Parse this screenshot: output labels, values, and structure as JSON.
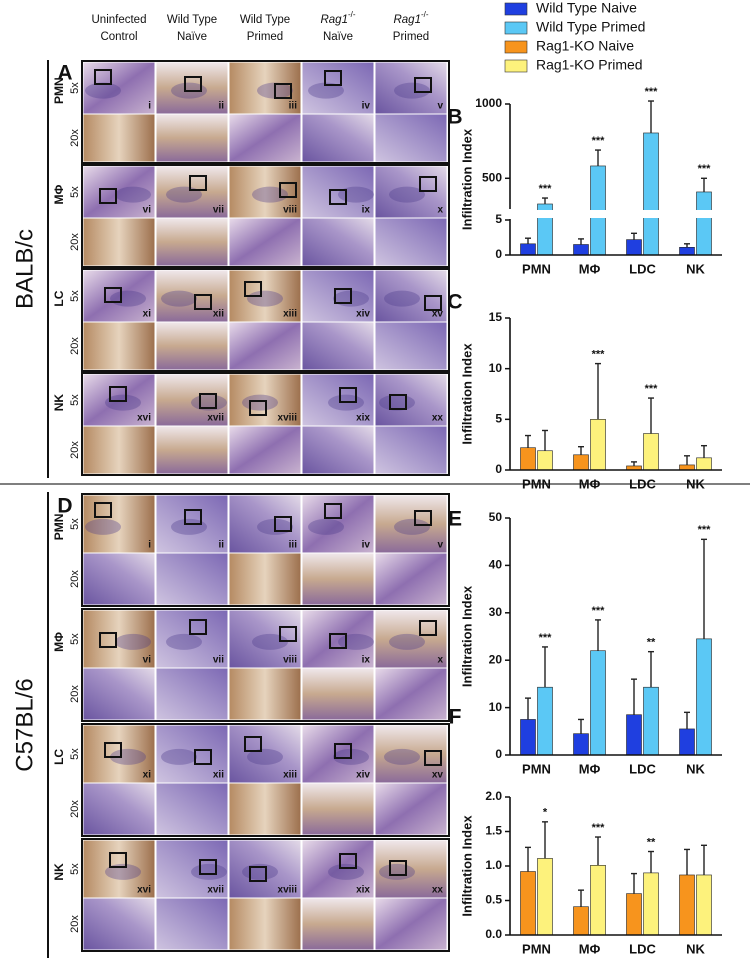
{
  "figure": {
    "columns": [
      {
        "line1": "Uninfected",
        "line2": "Control"
      },
      {
        "line1": "Wild Type",
        "line2": "Naïve"
      },
      {
        "line1": "Wild Type",
        "line2": "Primed"
      },
      {
        "line1": "Rag1",
        "sup": "-/-",
        "line2": "Naïve"
      },
      {
        "line1": "Rag1",
        "sup": "-/-",
        "line2": "Primed"
      }
    ],
    "magnifications": [
      "5x",
      "20x"
    ],
    "numerals": [
      "i",
      "ii",
      "iii",
      "iv",
      "v",
      "vi",
      "vii",
      "viii",
      "ix",
      "x",
      "xi",
      "xii",
      "xiii",
      "xiv",
      "xv",
      "xvi",
      "xvii",
      "xviii",
      "xix",
      "xx"
    ],
    "panels": [
      {
        "letter": "A",
        "strain": "BALB/c",
        "rows": [
          "PMN",
          "MΦ",
          "LC",
          "NK"
        ]
      },
      {
        "letter": "D",
        "strain": "C57BL/6",
        "rows": [
          "PMN",
          "MΦ",
          "LC",
          "NK"
        ]
      }
    ]
  },
  "chart_data": [
    {
      "type": "bar",
      "panel": "B",
      "y_label": "Infiltration Index",
      "categories": [
        "PMN",
        "MΦ",
        "LDC",
        "NK"
      ],
      "ylim": [
        0,
        1000
      ],
      "ybreak": [
        5,
        300
      ],
      "yticks": [
        0,
        5,
        500,
        1000
      ],
      "series": [
        {
          "name": "Wild Type Naive",
          "color": "#1f3fe0",
          "values": [
            1.6,
            1.5,
            2.2,
            1.1
          ],
          "errors": [
            0.8,
            0.8,
            0.9,
            0.5
          ]
        },
        {
          "name": "Wild Type Primed",
          "color": "#5bc8f5",
          "values": [
            327,
            583,
            805,
            408
          ],
          "errors": [
            40,
            107,
            215,
            92
          ],
          "significance": [
            "***",
            "***",
            "***",
            "***"
          ]
        }
      ]
    },
    {
      "type": "bar",
      "panel": "C",
      "y_label": "Infiltration Index",
      "categories": [
        "PMN",
        "MΦ",
        "LDC",
        "NK"
      ],
      "ylim": [
        0,
        15
      ],
      "yticks": [
        0,
        5,
        10,
        15
      ],
      "series": [
        {
          "name": "Rag1-KO Naive",
          "color": "#f7941d",
          "values": [
            2.2,
            1.5,
            0.4,
            0.5
          ],
          "errors": [
            1.2,
            0.8,
            0.4,
            0.9
          ]
        },
        {
          "name": "Rag1-KO Primed",
          "color": "#fdf27c",
          "values": [
            1.9,
            5.0,
            3.6,
            1.2
          ],
          "errors": [
            2.0,
            5.5,
            3.5,
            1.2
          ],
          "significance": [
            null,
            "***",
            "***",
            null
          ]
        }
      ]
    },
    {
      "type": "bar",
      "panel": "E",
      "y_label": "Infiltration Index",
      "categories": [
        "PMN",
        "MΦ",
        "LDC",
        "NK"
      ],
      "ylim": [
        0,
        50
      ],
      "yticks": [
        0,
        10,
        20,
        30,
        40,
        50
      ],
      "series": [
        {
          "color": "#1f3fe0",
          "values": [
            7.5,
            4.5,
            8.5,
            5.5
          ],
          "errors": [
            4.5,
            3.0,
            7.5,
            3.5
          ]
        },
        {
          "color": "#5bc8f5",
          "values": [
            14.3,
            22,
            14.3,
            24.5
          ],
          "errors": [
            8.5,
            6.5,
            7.5,
            21
          ],
          "significance": [
            "***",
            "***",
            "**",
            "***"
          ]
        }
      ]
    },
    {
      "type": "bar",
      "panel": "F",
      "y_label": "Infiltration Index",
      "categories": [
        "PMN",
        "MΦ",
        "LDC",
        "NK"
      ],
      "ylim": [
        0,
        2
      ],
      "yticks": [
        {
          "value": 0,
          "label": "0.0"
        },
        {
          "value": 0.5,
          "label": "0.5"
        },
        {
          "value": 1,
          "label": "1.0"
        },
        {
          "value": 1.5,
          "label": "1.5"
        },
        {
          "value": 2,
          "label": "2.0"
        }
      ],
      "series": [
        {
          "color": "#f7941d",
          "values": [
            0.92,
            0.41,
            0.6,
            0.87
          ],
          "errors": [
            0.35,
            0.24,
            0.29,
            0.37
          ]
        },
        {
          "color": "#fdf27c",
          "values": [
            1.11,
            1.01,
            0.9,
            0.87
          ],
          "errors": [
            0.53,
            0.41,
            0.31,
            0.43
          ],
          "significance": [
            "*",
            "***",
            "**",
            null
          ]
        }
      ]
    }
  ]
}
